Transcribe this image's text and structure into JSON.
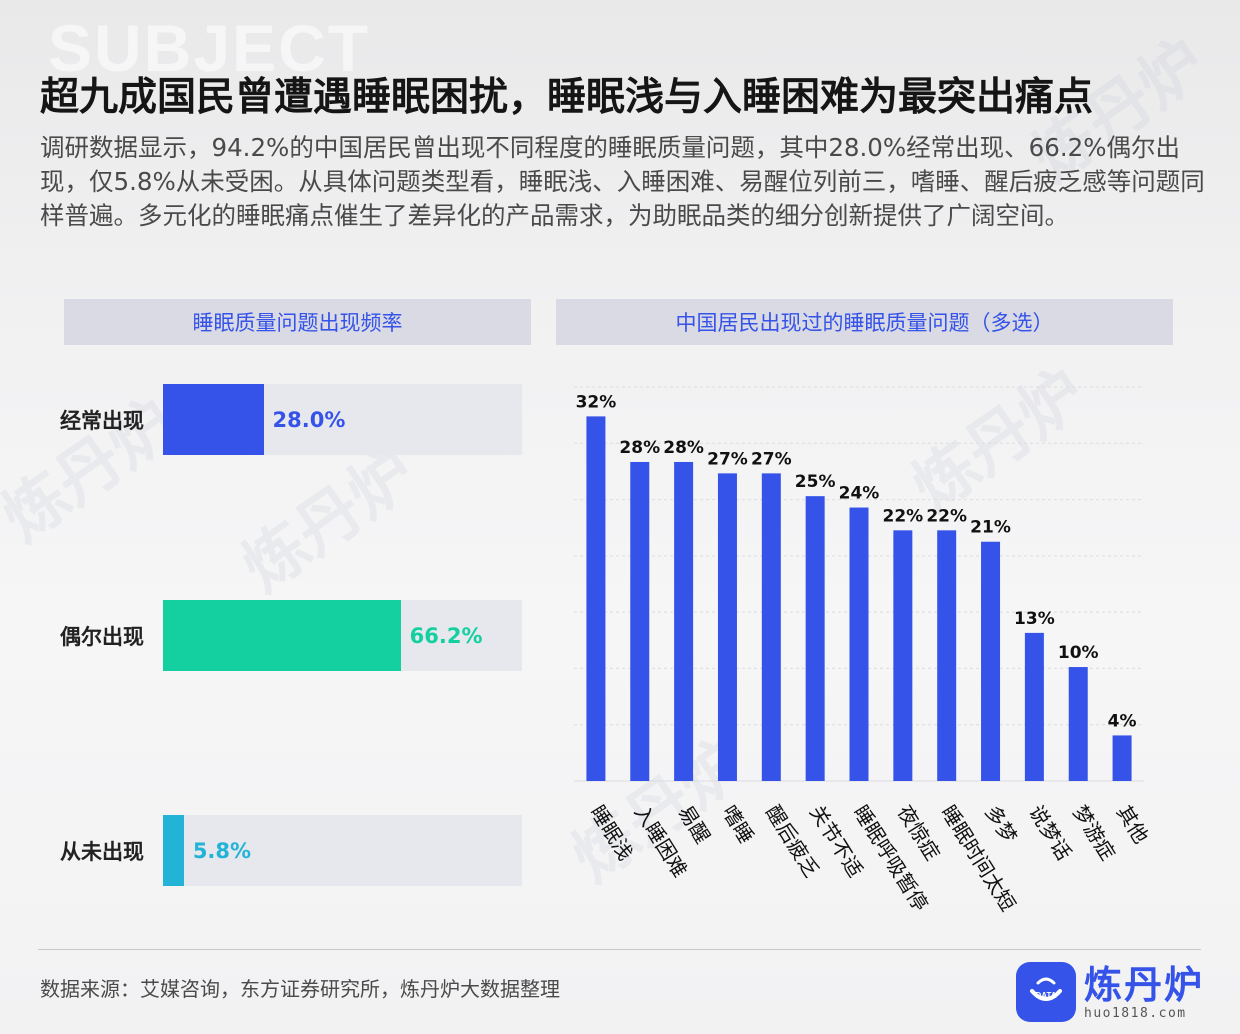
{
  "background_word": "SUBJECT",
  "title": "超九成国民曾遭遇睡眠困扰，睡眠浅与入睡困难为最突出痛点",
  "description": "调研数据显示，94.2%的中国居民曾出现不同程度的睡眠质量问题，其中28.0%经常出现、66.2%偶尔出现，仅5.8%从未受困。从具体问题类型看，睡眠浅、入睡困难、易醒位列前三，嗜睡、醒后疲乏感等问题同样普遍。多元化的睡眠痛点催生了差异化的产品需求，为助眠品类的细分创新提供了广阔空间。",
  "watermark": "炼丹炉",
  "chart_data": [
    {
      "type": "bar",
      "orientation": "horizontal",
      "title": "睡眠质量问题出现频率",
      "categories": [
        "经常出现",
        "偶尔出现",
        "从未出现"
      ],
      "values": [
        28.0,
        66.2,
        5.8
      ],
      "value_labels": [
        "28.0%",
        "66.2%",
        "5.8%"
      ],
      "colors": [
        "#3553e8",
        "#14cf9f",
        "#22b3d6"
      ],
      "xlim": [
        0,
        100
      ],
      "grid": false,
      "legend": "none"
    },
    {
      "type": "bar",
      "orientation": "vertical",
      "title": "中国居民出现过的睡眠质量问题（多选）",
      "categories": [
        "睡眠浅",
        "入睡困难",
        "易醒",
        "嗜睡",
        "醒后疲乏",
        "关节不适",
        "睡眠呼吸暂停",
        "夜惊症",
        "睡眠时间太短",
        "多梦",
        "说梦话",
        "梦游症",
        "其他"
      ],
      "values": [
        32,
        28,
        28,
        27,
        27,
        25,
        24,
        22,
        22,
        21,
        13,
        10,
        4
      ],
      "value_labels": [
        "32%",
        "28%",
        "28%",
        "27%",
        "27%",
        "25%",
        "24%",
        "22%",
        "22%",
        "21%",
        "13%",
        "10%",
        "4%"
      ],
      "color": "#3553e8",
      "ylim": [
        0,
        33
      ],
      "grid": true,
      "legend": "none"
    }
  ],
  "footer": {
    "source": "数据来源：艾媒咨询，东方证券研究所，炼丹炉大数据整理",
    "logo_name": "炼丹炉",
    "logo_badge": "DATA",
    "logo_url": "huo1818.com"
  }
}
